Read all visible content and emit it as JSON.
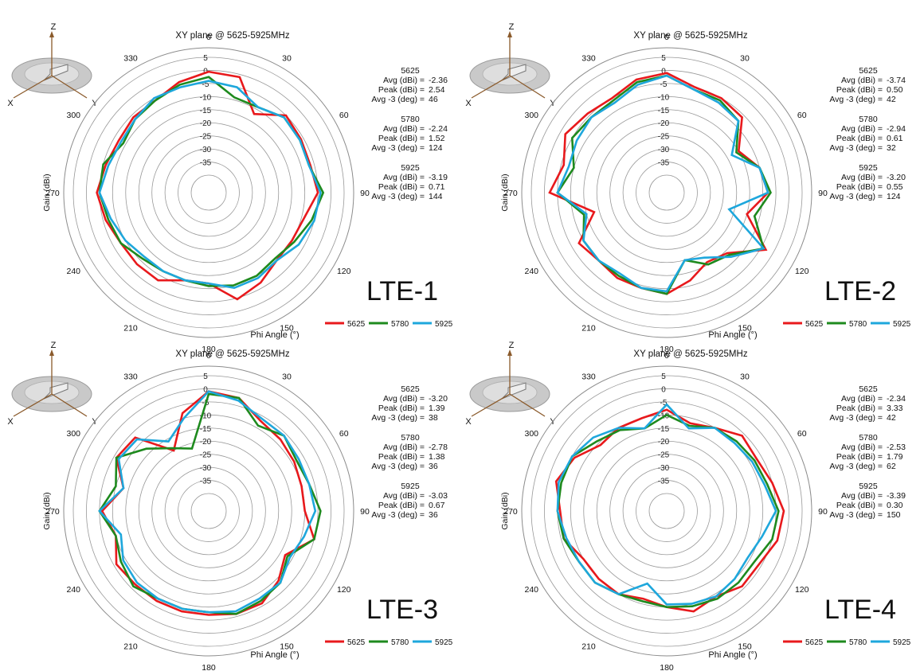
{
  "colors": {
    "5625": "#e8191c",
    "5780": "#1e8a1e",
    "5925": "#1ea7dc"
  },
  "axis_labels": {
    "x": "X",
    "y": "Y",
    "z": "Z"
  },
  "chart_data": [
    {
      "type": "polar-line",
      "title": "XY plane @ 5625-5925MHz",
      "xlabel": "Phi  Angle (°)",
      "ylabel": "Gain  (dBi)",
      "label": "LTE-1",
      "theta_ticks": [
        "0",
        "30",
        "60",
        "90",
        "120",
        "150",
        "180",
        "210",
        "240",
        "270",
        "300",
        "330"
      ],
      "r_ticks": [
        "5",
        "0",
        "-5",
        "-10",
        "-15",
        "-20",
        "-25",
        "-30",
        "-35"
      ],
      "rlim": [
        -40,
        5
      ],
      "angles": [
        0,
        15,
        30,
        45,
        60,
        75,
        90,
        105,
        120,
        135,
        150,
        165,
        180,
        195,
        210,
        225,
        240,
        255,
        270,
        285,
        300,
        315,
        330,
        345
      ],
      "series": [
        {
          "name": "5625",
          "color": "#e8191c",
          "values": [
            -0.5,
            -1,
            -12,
            -5,
            -6,
            -6.5,
            -5,
            -9,
            -10,
            -10,
            -7,
            -4.5,
            -12,
            -12,
            -8,
            -8,
            -8,
            -6,
            -4,
            -6,
            -7,
            -6,
            -6,
            -3
          ]
        },
        {
          "name": "5780",
          "color": "#1e8a1e",
          "values": [
            -2.5,
            -9,
            -9,
            -6,
            -6.5,
            -7,
            -3,
            -6,
            -9,
            -11,
            -10,
            -10,
            -11,
            -12,
            -12,
            -11,
            -8,
            -7,
            -5,
            -5,
            -9,
            -7,
            -6,
            -4
          ]
        },
        {
          "name": "5925",
          "color": "#1ea7dc",
          "values": [
            -4,
            -5,
            -9,
            -6,
            -6.5,
            -7,
            -4,
            -5,
            -7,
            -10,
            -9,
            -9,
            -12,
            -12,
            -12,
            -12,
            -10,
            -8,
            -5,
            -7,
            -8,
            -7,
            -5,
            -5
          ]
        }
      ],
      "stats": [
        {
          "freq": "5625",
          "avg": "-2.36",
          "peak": "2.54",
          "avg3": "46"
        },
        {
          "freq": "5780",
          "avg": "-2.24",
          "peak": "1.52",
          "avg3": "124"
        },
        {
          "freq": "5925",
          "avg": "-3.19",
          "peak": "0.71",
          "avg3": "144"
        }
      ]
    },
    {
      "type": "polar-line",
      "title": "XY plane @ 5625-5925MHz",
      "xlabel": "Phi  Angle (°)",
      "ylabel": "Gain  (dBi)",
      "label": "LTE-2",
      "theta_ticks": [
        "0",
        "30",
        "60",
        "90",
        "120",
        "150",
        "180",
        "210",
        "240",
        "270",
        "300",
        "330"
      ],
      "r_ticks": [
        "5",
        "0",
        "-5",
        "-10",
        "-15",
        "-20",
        "-25",
        "-30",
        "-35"
      ],
      "rlim": [
        -40,
        5
      ],
      "angles": [
        0,
        15,
        30,
        45,
        60,
        75,
        90,
        105,
        120,
        135,
        150,
        165,
        180,
        195,
        210,
        225,
        240,
        255,
        270,
        285,
        300,
        315,
        330,
        345
      ],
      "series": [
        {
          "name": "5625",
          "color": "#e8191c",
          "values": [
            -1,
            -5,
            -5,
            -6,
            -15,
            -10,
            -8,
            -15,
            -3,
            -14,
            -16,
            -12,
            -8,
            -9,
            -9,
            -10,
            -8,
            -18,
            -2,
            -6,
            -2,
            -4,
            -5,
            -2
          ]
        },
        {
          "name": "5780",
          "color": "#1e8a1e",
          "values": [
            -2,
            -6,
            -6,
            -8,
            -16,
            -10,
            -7,
            -12,
            -4,
            -13,
            -15,
            -20,
            -8,
            -9,
            -10,
            -10,
            -10,
            -14,
            -5,
            -10,
            -5,
            -6,
            -6,
            -3
          ]
        },
        {
          "name": "5925",
          "color": "#1ea7dc",
          "values": [
            -2,
            -6,
            -7,
            -8,
            -18,
            -10,
            -8,
            -22,
            -4,
            -12,
            -18,
            -20,
            -9,
            -9,
            -11,
            -10,
            -10,
            -15,
            -5,
            -8,
            -7,
            -6,
            -7,
            -4
          ]
        }
      ],
      "stats": [
        {
          "freq": "5625",
          "avg": "-3.74",
          "peak": "0.50",
          "avg3": "42"
        },
        {
          "freq": "5780",
          "avg": "-2.94",
          "peak": "0.61",
          "avg3": "32"
        },
        {
          "freq": "5925",
          "avg": "-3.20",
          "peak": "0.55",
          "avg3": "124"
        }
      ]
    },
    {
      "type": "polar-line",
      "title": "XY plane @ 5625-5925MHz",
      "xlabel": "Phi  Angle (°)",
      "ylabel": "Gain  (dBi)",
      "label": "LTE-3",
      "theta_ticks": [
        "0",
        "30",
        "60",
        "90",
        "120",
        "150",
        "180",
        "210",
        "240",
        "270",
        "300",
        "330"
      ],
      "r_ticks": [
        "5",
        "0",
        "-5",
        "-10",
        "-15",
        "-20",
        "-25",
        "-30",
        "-35"
      ],
      "rlim": [
        -40,
        5
      ],
      "angles": [
        0,
        15,
        30,
        45,
        60,
        75,
        90,
        105,
        120,
        135,
        150,
        165,
        180,
        195,
        210,
        225,
        240,
        255,
        270,
        285,
        300,
        315,
        330,
        345
      ],
      "series": [
        {
          "name": "5625",
          "color": "#e8191c",
          "values": [
            -1,
            -2,
            -7,
            -8,
            -9,
            -10,
            -10,
            -5,
            -13,
            -9,
            -6,
            -6,
            -7,
            -7,
            -7,
            -7,
            -6,
            -10,
            -6,
            -13,
            -6,
            -7,
            -20,
            -8
          ]
        },
        {
          "name": "5780",
          "color": "#1e8a1e",
          "values": [
            -2,
            -2,
            -9,
            -6,
            -8,
            -7,
            -4,
            -5,
            -12,
            -8,
            -7,
            -6,
            -8,
            -8,
            -8,
            -6,
            -8,
            -10,
            -5,
            -10,
            -6,
            -13,
            -19,
            -22
          ]
        },
        {
          "name": "5925",
          "color": "#1ea7dc",
          "values": [
            -1,
            -3,
            -6,
            -6,
            -7,
            -7,
            -6,
            -9,
            -11,
            -8,
            -8,
            -7,
            -8,
            -8,
            -8,
            -8,
            -9,
            -12,
            -5,
            -13,
            -7,
            -8,
            -16,
            -10
          ]
        }
      ],
      "stats": [
        {
          "freq": "5625",
          "avg": "-3.20",
          "peak": "1.39",
          "avg3": "38"
        },
        {
          "freq": "5780",
          "avg": "-2.78",
          "peak": "1.38",
          "avg3": "36"
        },
        {
          "freq": "5925",
          "avg": "-3.03",
          "peak": "0.67",
          "avg3": "36"
        }
      ]
    },
    {
      "type": "polar-line",
      "title": "XY plane @ 5625-5925MHz",
      "xlabel": "Phi  Angle (°)",
      "ylabel": "Gain  (dBi)",
      "label": "LTE-4",
      "theta_ticks": [
        "0",
        "30",
        "60",
        "90",
        "120",
        "150",
        "180",
        "210",
        "240",
        "270",
        "300",
        "330"
      ],
      "r_ticks": [
        "5",
        "0",
        "-5",
        "-10",
        "-15",
        "-20",
        "-25",
        "-30",
        "-35"
      ],
      "rlim": [
        -40,
        5
      ],
      "angles": [
        0,
        15,
        30,
        45,
        60,
        75,
        90,
        105,
        120,
        135,
        150,
        165,
        180,
        195,
        210,
        225,
        240,
        255,
        270,
        285,
        300,
        315,
        330,
        345
      ],
      "series": [
        {
          "name": "5625",
          "color": "#e8191c",
          "values": [
            -8,
            -12,
            -10,
            -6,
            -7,
            -5,
            -2,
            -3,
            -6,
            -6,
            -9,
            -7,
            -10,
            -12,
            -10,
            -10,
            -10,
            -6,
            -6,
            -3,
            -6,
            -11,
            -10,
            -10
          ]
        },
        {
          "name": "5780",
          "color": "#1e8a1e",
          "values": [
            -10,
            -13,
            -10,
            -9,
            -8,
            -7,
            -4,
            -5,
            -8,
            -8,
            -8,
            -9,
            -10,
            -11,
            -10,
            -8,
            -8,
            -6,
            -5,
            -5,
            -5,
            -9,
            -11,
            -14
          ]
        },
        {
          "name": "5925",
          "color": "#1ea7dc",
          "values": [
            -6,
            -14,
            -10,
            -10,
            -9,
            -8,
            -5,
            -9,
            -11,
            -10,
            -9,
            -10,
            -11,
            -18,
            -10,
            -8,
            -8,
            -7,
            -5,
            -4,
            -5,
            -7,
            -10,
            -14
          ]
        }
      ],
      "stats": [
        {
          "freq": "5625",
          "avg": "-2.34",
          "peak": "3.33",
          "avg3": "42"
        },
        {
          "freq": "5780",
          "avg": "-2.53",
          "peak": "1.79",
          "avg3": "62"
        },
        {
          "freq": "5925",
          "avg": "-3.39",
          "peak": "0.30",
          "avg3": "150"
        }
      ]
    }
  ],
  "stat_labels": {
    "avg": "Avg  (dBi)  =",
    "peak": "Peak  (dBi)  =",
    "avg3": "Avg -3 (deg)  ="
  }
}
